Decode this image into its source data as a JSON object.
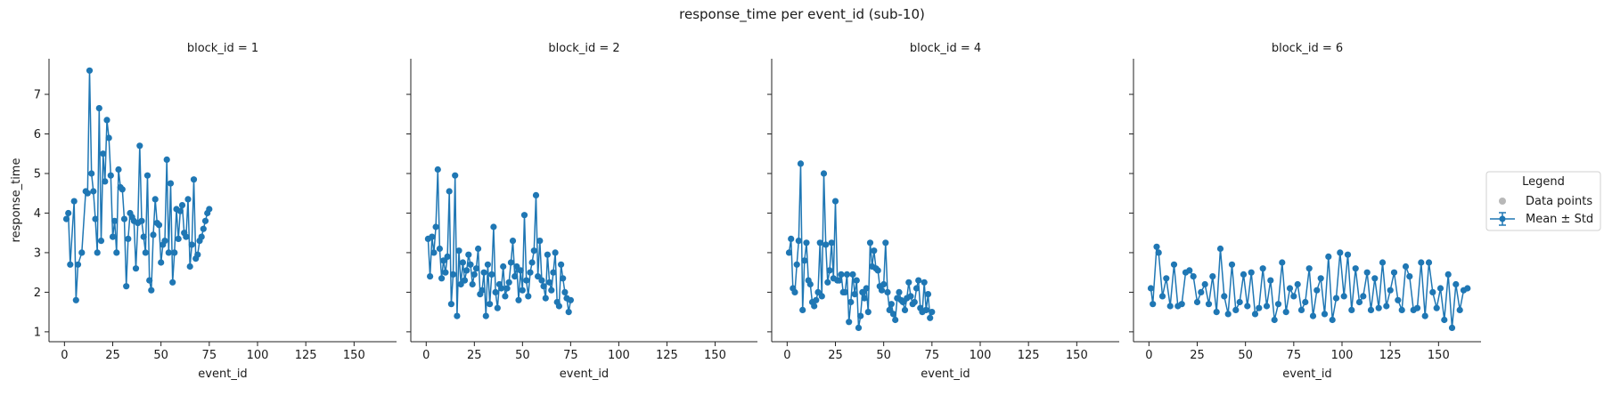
{
  "figure": {
    "title": "response_time per event_id (sub-10)",
    "ylabel": "response_time",
    "legend": {
      "title": "Legend",
      "placement": "right-outside",
      "items": [
        {
          "label": "Data points",
          "marker": "dot",
          "color": "#b8b8b8"
        },
        {
          "label": "Mean ± Std",
          "marker": "errorbar-line",
          "color": "#1f77b4"
        }
      ]
    }
  },
  "chart_data": [
    {
      "type": "line",
      "title": "block_id = 1",
      "xlabel": "event_id",
      "ylabel": "response_time",
      "xlim": [
        -8,
        172
      ],
      "ylim": [
        0.75,
        7.9
      ],
      "xticks": [
        0,
        25,
        50,
        75,
        100,
        125,
        150
      ],
      "yticks": [
        1,
        2,
        3,
        4,
        5,
        6,
        7
      ],
      "series": [
        {
          "name": "Mean ± Std",
          "color": "#1f77b4",
          "x": [
            1,
            2,
            3,
            5,
            6,
            7,
            9,
            11,
            12,
            13,
            14,
            15,
            16,
            17,
            18,
            19,
            20,
            21,
            22,
            23,
            24,
            25,
            26,
            27,
            28,
            29,
            30,
            31,
            32,
            33,
            34,
            35,
            36,
            37,
            38,
            39,
            40,
            41,
            42,
            43,
            44,
            45,
            46,
            47,
            48,
            49,
            50,
            51,
            52,
            53,
            54,
            55,
            56,
            57,
            58,
            59,
            60,
            61,
            62,
            63,
            64,
            65,
            66,
            67,
            68,
            69,
            70,
            71,
            72,
            73,
            74,
            75
          ],
          "y": [
            3.85,
            4.0,
            2.7,
            4.3,
            1.8,
            2.7,
            3.0,
            4.55,
            4.5,
            7.6,
            5.0,
            4.55,
            3.85,
            3.0,
            6.65,
            3.3,
            5.5,
            4.8,
            6.35,
            5.9,
            4.95,
            3.4,
            3.8,
            3.0,
            5.1,
            4.65,
            4.6,
            3.85,
            2.15,
            3.35,
            4.0,
            3.9,
            3.8,
            2.6,
            3.75,
            5.7,
            3.8,
            3.4,
            3.0,
            4.95,
            2.3,
            2.05,
            3.45,
            4.35,
            3.75,
            3.7,
            2.75,
            3.2,
            3.3,
            5.35,
            3.0,
            4.75,
            2.25,
            3.0,
            4.1,
            3.35,
            4.05,
            4.2,
            3.5,
            3.4,
            4.35,
            2.65,
            3.2,
            4.85,
            2.85,
            2.95,
            3.3,
            3.4,
            3.6,
            3.8,
            4.0,
            4.1
          ]
        }
      ]
    },
    {
      "type": "line",
      "title": "block_id = 2",
      "xlabel": "event_id",
      "xlim": [
        -8,
        172
      ],
      "ylim": [
        0.75,
        7.9
      ],
      "xticks": [
        0,
        25,
        50,
        75,
        100,
        125,
        150
      ],
      "yticks": [
        1,
        2,
        3,
        4,
        5,
        6,
        7
      ],
      "series": [
        {
          "name": "Mean ± Std",
          "color": "#1f77b4",
          "x": [
            1,
            2,
            3,
            4,
            5,
            6,
            7,
            8,
            9,
            10,
            11,
            12,
            13,
            14,
            15,
            16,
            17,
            18,
            19,
            20,
            21,
            22,
            23,
            24,
            25,
            26,
            27,
            28,
            29,
            30,
            31,
            32,
            33,
            34,
            35,
            36,
            37,
            38,
            39,
            40,
            41,
            42,
            43,
            44,
            45,
            46,
            47,
            48,
            49,
            50,
            51,
            52,
            53,
            54,
            55,
            56,
            57,
            58,
            59,
            60,
            61,
            62,
            63,
            64,
            65,
            66,
            67,
            68,
            69,
            70,
            71,
            72,
            73,
            74,
            75
          ],
          "y": [
            3.35,
            2.4,
            3.4,
            3.0,
            3.65,
            5.1,
            3.1,
            2.35,
            2.8,
            2.5,
            2.9,
            4.55,
            1.7,
            2.45,
            4.95,
            1.4,
            3.05,
            2.2,
            2.75,
            2.3,
            2.55,
            2.95,
            2.7,
            2.2,
            2.45,
            2.6,
            3.1,
            1.95,
            2.05,
            2.5,
            1.4,
            2.7,
            1.7,
            2.45,
            3.65,
            2.0,
            1.6,
            2.2,
            2.1,
            2.65,
            1.9,
            2.1,
            2.25,
            2.75,
            3.3,
            2.4,
            2.65,
            1.8,
            2.55,
            2.05,
            3.95,
            2.3,
            1.9,
            2.5,
            2.75,
            3.05,
            4.45,
            2.4,
            3.3,
            2.3,
            2.15,
            1.85,
            2.95,
            2.25,
            2.05,
            2.5,
            3.0,
            1.75,
            1.65,
            2.7,
            2.35,
            2.0,
            1.85,
            1.5,
            1.8
          ]
        }
      ]
    },
    {
      "type": "line",
      "title": "block_id = 4",
      "xlabel": "event_id",
      "xlim": [
        -8,
        172
      ],
      "ylim": [
        0.75,
        7.9
      ],
      "xticks": [
        0,
        25,
        50,
        75,
        100,
        125,
        150
      ],
      "yticks": [
        1,
        2,
        3,
        4,
        5,
        6,
        7
      ],
      "series": [
        {
          "name": "Mean ± Std",
          "color": "#1f77b4",
          "x": [
            1,
            2,
            3,
            4,
            5,
            6,
            7,
            8,
            9,
            10,
            11,
            12,
            13,
            14,
            15,
            16,
            17,
            18,
            19,
            20,
            21,
            22,
            23,
            24,
            25,
            26,
            27,
            28,
            29,
            30,
            31,
            32,
            33,
            34,
            35,
            36,
            37,
            38,
            39,
            40,
            41,
            42,
            43,
            44,
            45,
            46,
            47,
            48,
            49,
            50,
            51,
            52,
            53,
            54,
            55,
            56,
            57,
            58,
            59,
            60,
            61,
            62,
            63,
            64,
            65,
            66,
            67,
            68,
            69,
            70,
            71,
            72,
            73,
            74,
            75
          ],
          "y": [
            3.0,
            3.35,
            2.1,
            2.0,
            2.7,
            3.3,
            5.25,
            1.55,
            2.8,
            3.25,
            2.3,
            2.2,
            1.75,
            1.65,
            1.8,
            2.0,
            3.25,
            1.9,
            5.0,
            3.2,
            2.25,
            2.55,
            3.25,
            2.35,
            4.3,
            2.3,
            2.3,
            2.45,
            2.0,
            2.0,
            2.45,
            1.25,
            1.75,
            2.45,
            1.95,
            2.3,
            1.1,
            1.4,
            2.0,
            1.85,
            2.1,
            1.5,
            3.25,
            2.65,
            3.05,
            2.6,
            2.55,
            2.15,
            2.05,
            2.2,
            3.25,
            2.0,
            1.55,
            1.7,
            1.45,
            1.3,
            1.85,
            2.0,
            1.8,
            1.75,
            1.55,
            1.85,
            2.25,
            1.9,
            1.7,
            1.75,
            2.1,
            2.3,
            1.6,
            1.5,
            2.25,
            1.55,
            1.95,
            1.35,
            1.5
          ]
        }
      ]
    },
    {
      "type": "line",
      "title": "block_id = 6",
      "xlabel": "event_id",
      "xlim": [
        -8,
        172
      ],
      "ylim": [
        0.75,
        7.9
      ],
      "xticks": [
        0,
        25,
        50,
        75,
        100,
        125,
        150
      ],
      "yticks": [
        1,
        2,
        3,
        4,
        5,
        6,
        7
      ],
      "series": [
        {
          "name": "Mean ± Std",
          "color": "#1f77b4",
          "x": [
            1,
            2,
            4,
            5,
            7,
            9,
            11,
            13,
            15,
            17,
            19,
            21,
            23,
            25,
            27,
            29,
            31,
            33,
            35,
            37,
            39,
            41,
            43,
            45,
            47,
            49,
            51,
            53,
            55,
            57,
            59,
            61,
            63,
            65,
            67,
            69,
            71,
            73,
            75,
            77,
            79,
            81,
            83,
            85,
            87,
            89,
            91,
            93,
            95,
            97,
            99,
            101,
            103,
            105,
            107,
            109,
            111,
            113,
            115,
            117,
            119,
            121,
            123,
            125,
            127,
            129,
            131,
            133,
            135,
            137,
            139,
            141,
            143,
            145,
            147,
            149,
            151,
            153,
            155,
            157,
            159,
            161,
            163,
            165
          ],
          "y": [
            2.1,
            1.7,
            3.15,
            3.0,
            1.9,
            2.35,
            1.65,
            2.7,
            1.65,
            1.7,
            2.5,
            2.55,
            2.4,
            1.75,
            2.0,
            2.2,
            1.7,
            2.4,
            1.5,
            3.1,
            1.9,
            1.45,
            2.7,
            1.55,
            1.75,
            2.45,
            1.65,
            2.5,
            1.45,
            1.6,
            2.6,
            1.65,
            2.3,
            1.3,
            1.7,
            2.75,
            1.5,
            2.1,
            1.9,
            2.2,
            1.55,
            1.75,
            2.6,
            1.4,
            2.05,
            2.35,
            1.45,
            2.9,
            1.3,
            1.85,
            3.0,
            1.9,
            2.95,
            1.55,
            2.6,
            1.75,
            1.9,
            2.5,
            1.55,
            2.35,
            1.6,
            2.75,
            1.65,
            2.05,
            2.5,
            1.8,
            1.55,
            2.65,
            2.4,
            1.55,
            1.6,
            2.75,
            1.4,
            2.75,
            2.0,
            1.6,
            2.1,
            1.3,
            2.45,
            1.1,
            2.2,
            1.55,
            2.05,
            2.1
          ]
        }
      ]
    }
  ]
}
